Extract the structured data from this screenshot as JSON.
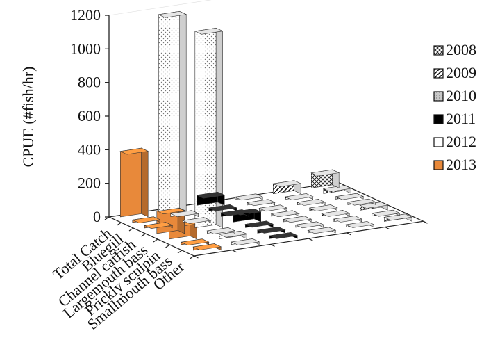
{
  "chart_data": {
    "type": "bar",
    "ylabel": "CPUE (#fish/hr)",
    "ylim": [
      0,
      1200
    ],
    "yticks": [
      "0",
      "200",
      "400",
      "600",
      "800",
      "1000",
      "1200"
    ],
    "categories": [
      "Total Catch",
      "Bluegill",
      "Channel catfish",
      "Largemouth bass",
      "Prickly sculpin",
      "Smallmouth bass",
      "Other"
    ],
    "series": [
      {
        "name": "2013",
        "color": "#e8893a",
        "values": [
          390,
          15,
          15,
          135,
          90,
          15,
          20
        ]
      },
      {
        "name": "2012",
        "color": "#ffffff",
        "values": [
          1170,
          18,
          10,
          1170,
          15,
          28,
          15
        ]
      },
      {
        "name": "2011",
        "color": "#000000",
        "values": [
          60,
          18,
          22,
          60,
          20,
          18,
          18
        ]
      },
      {
        "name": "2010",
        "color": "#b0b0b0",
        "values": [
          15,
          15,
          15,
          15,
          15,
          15,
          15
        ]
      },
      {
        "name": "2009",
        "color": "#555555",
        "values": [
          60,
          15,
          15,
          15,
          15,
          15,
          15
        ]
      },
      {
        "name": "2008",
        "color": "#8a8a8a",
        "values": [
          90,
          30,
          15,
          15,
          30,
          15,
          25
        ]
      }
    ],
    "legend": {
      "position": "right",
      "entries": [
        "2008",
        "2009",
        "2010",
        "2011",
        "2012",
        "2013"
      ]
    }
  }
}
